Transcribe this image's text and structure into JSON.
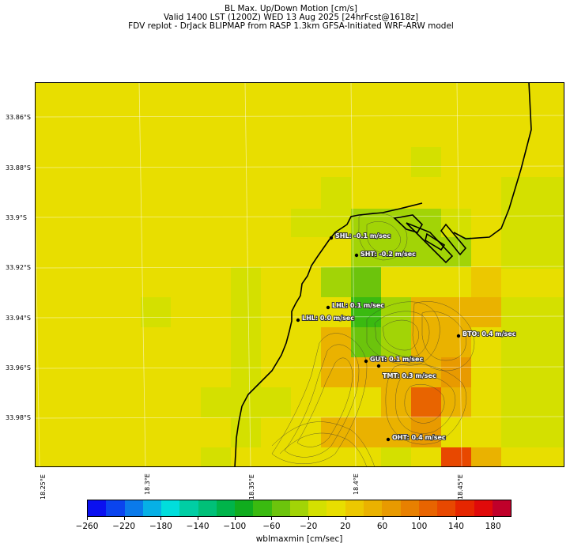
{
  "title": {
    "line1": "BL Max. Up/Down Motion [cm/s]",
    "line2": "Valid 1400 LST (1200Z) WED 13 Aug 2025 [24hrFcst@1618z]",
    "line3": "FDV replot - DrJack BLIPMAP from RASP 1.3km GFSA-Initiated WRF-ARW model"
  },
  "axes": {
    "y_labels": [
      "33.86°S",
      "33.88°S",
      "33.9°S",
      "33.92°S",
      "33.94°S",
      "33.96°S",
      "33.98°S"
    ],
    "x_labels": [
      "18.25°E",
      "18.3°E",
      "18.35°E",
      "18.4°E",
      "18.45°E"
    ]
  },
  "stations": [
    {
      "code": "SHL",
      "label": "SHL: -0.1 m/sec",
      "value": -0.1
    },
    {
      "code": "SHT",
      "label": "SHT: -0.2 m/sec",
      "value": -0.2
    },
    {
      "code": "LHL",
      "label": "LHL: 0.1 m/sec",
      "value": 0.1
    },
    {
      "code": "LHL2",
      "label": "LHL: 0.0 m/sec",
      "value": 0.0
    },
    {
      "code": "BTO",
      "label": "BTO: 0.4 m/sec",
      "value": 0.4
    },
    {
      "code": "GUT",
      "label": "GUT: 0.1 m/sec",
      "value": 0.1
    },
    {
      "code": "TMT",
      "label": "TMT: 0.3 m/sec",
      "value": 0.3
    },
    {
      "code": "OHT",
      "label": "OHT: 0.4 m/sec",
      "value": 0.4
    }
  ],
  "colorbar": {
    "label": "wblmaxmin [cm/sec]",
    "ticks": [
      "−260",
      "−220",
      "−180",
      "−140",
      "−100",
      "−60",
      "−20",
      "20",
      "60",
      "100",
      "140",
      "180"
    ],
    "colors": [
      "#0a10f0",
      "#0a44ee",
      "#0a7aea",
      "#06b0e6",
      "#00dedc",
      "#00cea4",
      "#00c078",
      "#00b44a",
      "#10ac1e",
      "#3aba10",
      "#6cc40c",
      "#a2d406",
      "#d4e000",
      "#e8de00",
      "#ecc800",
      "#eab200",
      "#e89a00",
      "#e88000",
      "#e86400",
      "#e84800",
      "#e62600",
      "#e00a0a",
      "#c0002a"
    ]
  },
  "colors": {
    "background": "#e8de00",
    "light_green": "#d4e000",
    "green": "#a2d406",
    "dark_green": "#6cc40c",
    "bright_green": "#3aba10",
    "orange": "#eab200",
    "dark_orange": "#e89a00",
    "red_orange": "#e86400",
    "red": "#e84800"
  }
}
